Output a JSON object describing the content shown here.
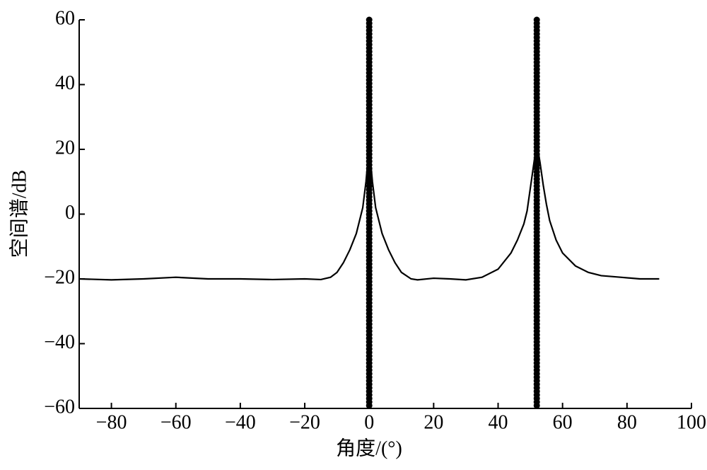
{
  "chart_data": {
    "type": "line",
    "x_label": "角度/(°)",
    "y_label": "空间谱/dB",
    "x": [
      -90,
      -80,
      -70,
      -60,
      -50,
      -40,
      -30,
      -20,
      -15,
      -12,
      -10,
      -8,
      -6,
      -4,
      -2,
      -1,
      0,
      1,
      2,
      4,
      6,
      8,
      10,
      13,
      15,
      20,
      25,
      30,
      35,
      40,
      44,
      46,
      48,
      49,
      50,
      51,
      52,
      53,
      54,
      55,
      56,
      58,
      60,
      64,
      68,
      72,
      78,
      84,
      90
    ],
    "series": [
      {
        "color": "#000000",
        "values": [
          -20,
          -20.3,
          -20,
          -19.5,
          -20,
          -20,
          -20.2,
          -20,
          -20.2,
          -19.5,
          -18,
          -15,
          -11,
          -6,
          2,
          10,
          21,
          10,
          2,
          -6,
          -11,
          -15,
          -18,
          -20,
          -20.3,
          -19.8,
          -20,
          -20.3,
          -19.5,
          -17,
          -12,
          -8,
          -3,
          1,
          8,
          15,
          22,
          16,
          9,
          3,
          -2,
          -8,
          -12,
          -16,
          -18,
          -19,
          -19.5,
          -20,
          -20
        ]
      }
    ],
    "vlines": [
      0,
      52
    ],
    "vline_color": "#000000",
    "xlim": [
      -90,
      100
    ],
    "ylim": [
      -60,
      60
    ],
    "xticks": [
      {
        "value": -80,
        "label": "−80"
      },
      {
        "value": -60,
        "label": "−60"
      },
      {
        "value": -40,
        "label": "−40"
      },
      {
        "value": -20,
        "label": "−20"
      },
      0,
      20,
      40,
      60,
      80,
      100
    ],
    "yticks": [
      {
        "value": -60,
        "label": "−60"
      },
      {
        "value": -40,
        "label": "−40"
      },
      {
        "value": -20,
        "label": "−20"
      },
      0,
      20,
      40,
      60
    ]
  }
}
